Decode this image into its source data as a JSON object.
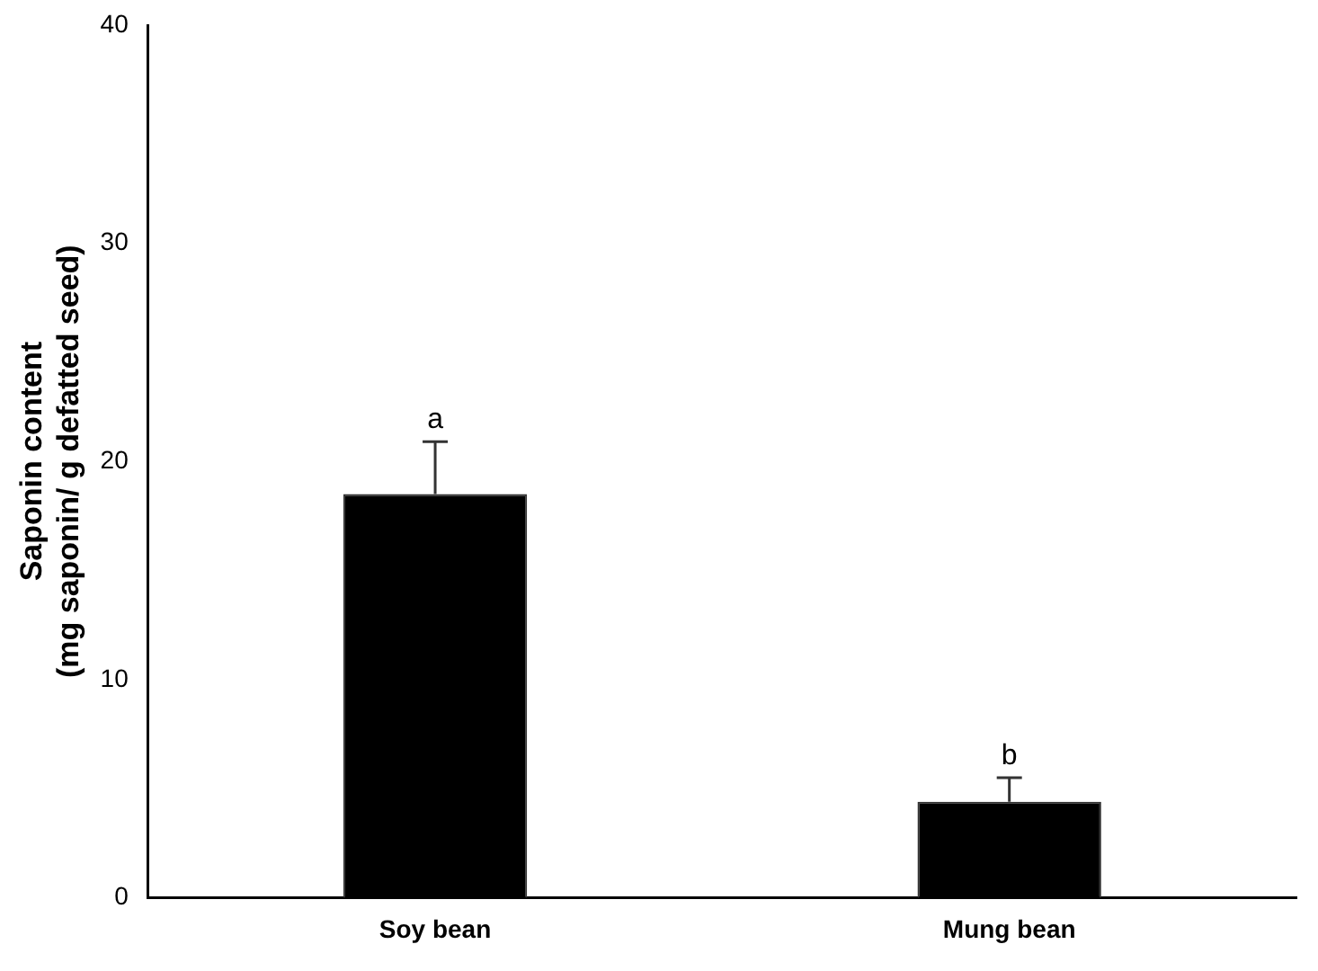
{
  "chart_data": {
    "type": "bar",
    "ylabel": "Saponin content\n(mg saponin/ g defatted seed)",
    "categories": [
      "Soy bean",
      "Mung bean"
    ],
    "values": [
      18.5,
      4.4
    ],
    "errors": [
      2.4,
      1.1
    ],
    "color": "#000000",
    "ylim": [
      0,
      40
    ],
    "yticks": [
      0,
      10,
      20,
      30,
      40
    ],
    "grid": false,
    "annotations": [
      {
        "text": "a",
        "x": "Soy bean",
        "y": 20.9
      },
      {
        "text": "b",
        "x": "Mung bean",
        "y": 5.5
      }
    ]
  }
}
